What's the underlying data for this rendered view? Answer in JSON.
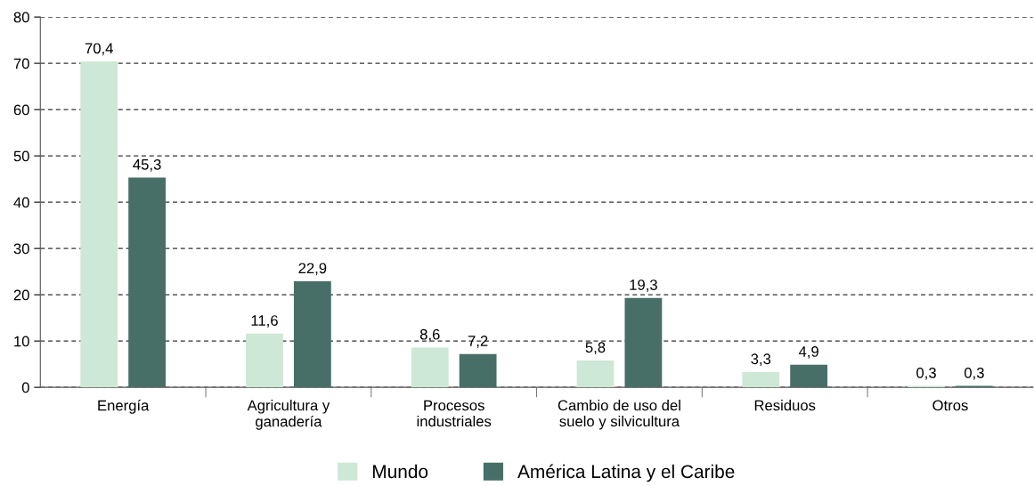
{
  "chart_data": {
    "type": "bar",
    "categories": [
      "Energía",
      "Agricultura y\nganadería",
      "Procesos\nindustriales",
      "Cambio de uso del\nsuelo y silvicultura",
      "Residuos",
      "Otros"
    ],
    "series": [
      {
        "name": "Mundo",
        "color": "#cde8d6",
        "values": [
          70.4,
          11.6,
          8.6,
          5.8,
          3.3,
          0.3
        ],
        "value_labels": [
          "70,4",
          "11,6",
          "8,6",
          "5,8",
          "3,3",
          "0,3"
        ]
      },
      {
        "name": "América Latina y el Caribe",
        "color": "#476f67",
        "values": [
          45.3,
          22.9,
          7.2,
          19.3,
          4.9,
          0.3
        ],
        "value_labels": [
          "45,3",
          "22,9",
          "7,2",
          "19,3",
          "4,9",
          "0,3"
        ]
      }
    ],
    "ylim": [
      0,
      80
    ],
    "yticks": [
      0,
      10,
      20,
      30,
      40,
      50,
      60,
      70,
      80
    ],
    "grid": "y",
    "legend": "bottom"
  }
}
